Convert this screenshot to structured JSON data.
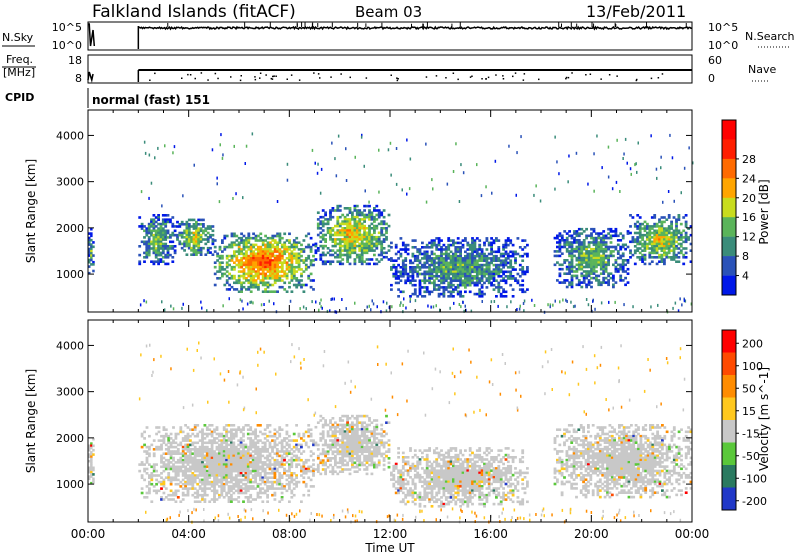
{
  "header": {
    "title": "Falkland Islands (fitACF)",
    "beam": "Beam 03",
    "date": "13/Feb/2011"
  },
  "strip1": {
    "left_label": "N.Sky",
    "left_ticks": [
      "10^5",
      "10^0"
    ],
    "right_label": "N.Search",
    "right_ticks": [
      "10^5",
      "10^0"
    ]
  },
  "strip2": {
    "left_label_line1": "Freq.",
    "left_label_line2": "[MHz]",
    "left_ticks": [
      "18",
      "8"
    ],
    "right_label": "Nave",
    "right_ticks": [
      "60",
      "0"
    ]
  },
  "cpid": {
    "label": "CPID",
    "value": "normal (fast) 151"
  },
  "colors": {
    "power_scale": [
      "#0018e8",
      "#2a52b8",
      "#3a8c7a",
      "#5ab45a",
      "#c8dc1e",
      "#ffa500",
      "#ff6a00",
      "#ff1e00",
      "#ff0000"
    ],
    "velocity_scale": [
      "#2038c8",
      "#2a7a60",
      "#5ac83a",
      "#c8c8c8",
      "#ffc81e",
      "#ff8c00",
      "#ff4a00",
      "#ff0000"
    ]
  },
  "chart_data": [
    {
      "type": "heatmap",
      "ylabel": "Slant Range [km]",
      "yticks": [
        1000,
        2000,
        3000,
        4000
      ],
      "ylim": [
        180,
        4550
      ],
      "xlim": [
        0,
        24
      ],
      "colorbar": {
        "label": "Power [dB]",
        "ticks": [
          "4",
          "8",
          "12",
          "16",
          "20",
          "24",
          "28"
        ],
        "range": [
          0,
          32
        ]
      },
      "regions": [
        {
          "t0": 0.0,
          "t1": 0.25,
          "r0": 1000,
          "r1": 2000,
          "level": 12
        },
        {
          "t0": 2.0,
          "t1": 3.5,
          "r0": 1200,
          "r1": 2300,
          "level": 14
        },
        {
          "t0": 3.5,
          "t1": 5.0,
          "r0": 1400,
          "r1": 2200,
          "level": 18
        },
        {
          "t0": 5.0,
          "t1": 9.0,
          "r0": 600,
          "r1": 1900,
          "level": 26
        },
        {
          "t0": 9.0,
          "t1": 12.0,
          "r0": 1200,
          "r1": 2500,
          "level": 20
        },
        {
          "t0": 12.0,
          "t1": 17.5,
          "r0": 500,
          "r1": 1800,
          "level": 12
        },
        {
          "t0": 18.5,
          "t1": 21.5,
          "r0": 700,
          "r1": 2000,
          "level": 14
        },
        {
          "t0": 21.5,
          "t1": 24.0,
          "r0": 1200,
          "r1": 2300,
          "level": 18
        }
      ]
    },
    {
      "type": "heatmap",
      "xlabel": "Time UT",
      "ylabel": "Slant Range [km]",
      "yticks": [
        1000,
        2000,
        3000,
        4000
      ],
      "ylim": [
        180,
        4550
      ],
      "xlim": [
        0,
        24
      ],
      "xticks": [
        "00:00",
        "04:00",
        "08:00",
        "12:00",
        "16:00",
        "20:00",
        "00:00"
      ],
      "colorbar": {
        "label": "Velocity [m s^-1]",
        "ticks": [
          "200",
          "100",
          "50",
          "15",
          "-15",
          "-50",
          "-100",
          "-200"
        ],
        "range": [
          -250,
          250
        ]
      },
      "regions": [
        {
          "t0": 0.0,
          "t1": 0.25,
          "r0": 1000,
          "r1": 2000,
          "level": 0
        },
        {
          "t0": 2.0,
          "t1": 9.0,
          "r0": 600,
          "r1": 2300,
          "level": 0
        },
        {
          "t0": 9.0,
          "t1": 12.0,
          "r0": 1200,
          "r1": 2500,
          "level": 0
        },
        {
          "t0": 12.0,
          "t1": 17.5,
          "r0": 500,
          "r1": 1800,
          "level": 0
        },
        {
          "t0": 18.5,
          "t1": 24.0,
          "r0": 700,
          "r1": 2300,
          "level": 0
        }
      ]
    }
  ]
}
